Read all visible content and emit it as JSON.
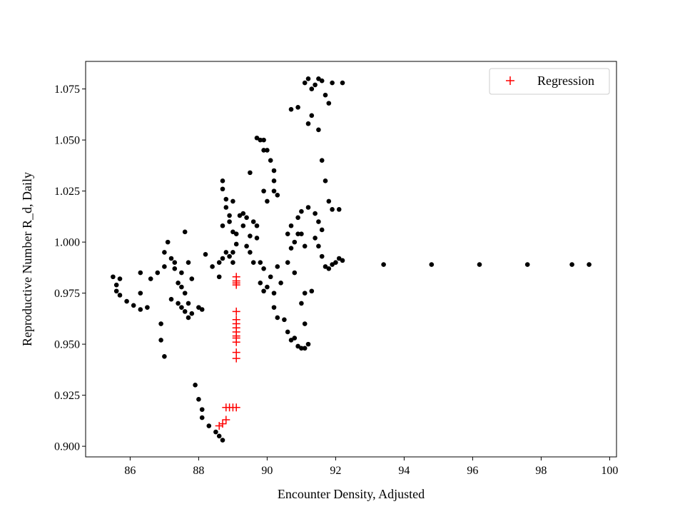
{
  "chart_data": {
    "type": "scatter",
    "title": "",
    "xlabel": "Encounter Density, Adjusted",
    "ylabel": "Reproductive Number R_d, Daily",
    "xlim": [
      84.7,
      100.2
    ],
    "ylim": [
      0.8948,
      1.0885
    ],
    "xticks": [
      86,
      88,
      90,
      92,
      94,
      96,
      98,
      100
    ],
    "yticks": [
      0.9,
      0.925,
      0.95,
      0.975,
      1.0,
      1.025,
      1.05,
      1.075
    ],
    "ytick_labels": [
      "0.900",
      "0.925",
      "0.950",
      "0.975",
      "1.000",
      "1.025",
      "1.050",
      "1.075"
    ],
    "grid": false,
    "legend": {
      "position": "top-right",
      "entries": [
        "Regression"
      ]
    },
    "series": [
      {
        "marker": "circle",
        "color": "#000000",
        "points": [
          [
            85.5,
            0.983
          ],
          [
            85.6,
            0.979
          ],
          [
            85.6,
            0.976
          ],
          [
            85.7,
            0.982
          ],
          [
            85.7,
            0.974
          ],
          [
            85.9,
            0.971
          ],
          [
            86.1,
            0.969
          ],
          [
            86.3,
            0.967
          ],
          [
            86.3,
            0.975
          ],
          [
            86.3,
            0.985
          ],
          [
            86.5,
            0.968
          ],
          [
            86.6,
            0.982
          ],
          [
            86.8,
            0.985
          ],
          [
            86.9,
            0.96
          ],
          [
            86.9,
            0.952
          ],
          [
            87.0,
            0.944
          ],
          [
            87.0,
            0.995
          ],
          [
            87.0,
            0.988
          ],
          [
            87.2,
            0.972
          ],
          [
            87.2,
            0.992
          ],
          [
            87.1,
            1.0
          ],
          [
            87.3,
            0.99
          ],
          [
            87.3,
            0.987
          ],
          [
            87.4,
            0.97
          ],
          [
            87.4,
            0.98
          ],
          [
            87.5,
            0.968
          ],
          [
            87.5,
            0.978
          ],
          [
            87.5,
            0.985
          ],
          [
            87.6,
            0.975
          ],
          [
            87.6,
            0.966
          ],
          [
            87.7,
            0.963
          ],
          [
            87.7,
            0.97
          ],
          [
            87.8,
            0.965
          ],
          [
            87.7,
            0.99
          ],
          [
            87.6,
            1.005
          ],
          [
            87.8,
            0.982
          ],
          [
            88.0,
            0.968
          ],
          [
            88.1,
            0.967
          ],
          [
            87.9,
            0.93
          ],
          [
            88.0,
            0.923
          ],
          [
            88.1,
            0.918
          ],
          [
            88.1,
            0.914
          ],
          [
            88.3,
            0.91
          ],
          [
            88.5,
            0.907
          ],
          [
            88.6,
            0.905
          ],
          [
            88.7,
            0.903
          ],
          [
            88.2,
            0.994
          ],
          [
            88.4,
            0.988
          ],
          [
            88.6,
            0.983
          ],
          [
            88.6,
            0.99
          ],
          [
            88.7,
            0.992
          ],
          [
            88.8,
            0.995
          ],
          [
            88.7,
            1.008
          ],
          [
            88.9,
            1.01
          ],
          [
            88.7,
            1.03
          ],
          [
            88.7,
            1.026
          ],
          [
            88.8,
            1.021
          ],
          [
            88.8,
            1.017
          ],
          [
            88.9,
            1.013
          ],
          [
            88.9,
            0.993
          ],
          [
            89.0,
            0.995
          ],
          [
            89.0,
            0.99
          ],
          [
            89.1,
            0.999
          ],
          [
            89.0,
            1.005
          ],
          [
            89.2,
            1.013
          ],
          [
            89.3,
            1.014
          ],
          [
            89.4,
            1.012
          ],
          [
            89.3,
            1.008
          ],
          [
            89.1,
            1.004
          ],
          [
            89.0,
            1.02
          ],
          [
            89.4,
            0.998
          ],
          [
            89.5,
            0.995
          ],
          [
            89.6,
            0.99
          ],
          [
            89.5,
            1.003
          ],
          [
            89.6,
            1.01
          ],
          [
            89.7,
            1.008
          ],
          [
            89.7,
            1.002
          ],
          [
            89.5,
            1.034
          ],
          [
            89.7,
            1.051
          ],
          [
            89.8,
            1.05
          ],
          [
            89.9,
            1.045
          ],
          [
            89.9,
            1.05
          ],
          [
            90.0,
            1.045
          ],
          [
            90.1,
            1.04
          ],
          [
            90.2,
            1.035
          ],
          [
            90.2,
            1.03
          ],
          [
            90.2,
            1.025
          ],
          [
            90.3,
            1.023
          ],
          [
            89.9,
            1.025
          ],
          [
            90.0,
            1.02
          ],
          [
            89.8,
            0.99
          ],
          [
            89.9,
            0.987
          ],
          [
            89.8,
            0.98
          ],
          [
            89.9,
            0.976
          ],
          [
            90.0,
            0.978
          ],
          [
            90.1,
            0.983
          ],
          [
            90.2,
            0.975
          ],
          [
            90.3,
            0.988
          ],
          [
            90.4,
            0.98
          ],
          [
            90.2,
            0.968
          ],
          [
            90.3,
            0.963
          ],
          [
            90.5,
            0.962
          ],
          [
            90.6,
            0.956
          ],
          [
            90.7,
            0.952
          ],
          [
            90.6,
            0.99
          ],
          [
            90.7,
            0.997
          ],
          [
            90.6,
            1.004
          ],
          [
            90.7,
            1.008
          ],
          [
            90.8,
            1.0
          ],
          [
            90.9,
            1.004
          ],
          [
            90.9,
            1.012
          ],
          [
            91.0,
            1.015
          ],
          [
            91.0,
            1.004
          ],
          [
            91.1,
            0.998
          ],
          [
            90.8,
            0.985
          ],
          [
            90.8,
            0.953
          ],
          [
            90.9,
            0.949
          ],
          [
            91.0,
            0.948
          ],
          [
            91.1,
            0.948
          ],
          [
            91.2,
            0.95
          ],
          [
            91.1,
            0.96
          ],
          [
            91.0,
            0.97
          ],
          [
            91.1,
            0.975
          ],
          [
            91.3,
            0.976
          ],
          [
            90.7,
            1.065
          ],
          [
            90.9,
            1.066
          ],
          [
            91.1,
            1.078
          ],
          [
            91.2,
            1.08
          ],
          [
            91.3,
            1.075
          ],
          [
            91.4,
            1.077
          ],
          [
            91.5,
            1.08
          ],
          [
            91.6,
            1.079
          ],
          [
            91.7,
            1.072
          ],
          [
            91.8,
            1.068
          ],
          [
            91.9,
            1.078
          ],
          [
            92.2,
            1.078
          ],
          [
            91.2,
            1.058
          ],
          [
            91.3,
            1.062
          ],
          [
            91.5,
            1.055
          ],
          [
            91.6,
            1.04
          ],
          [
            91.7,
            1.03
          ],
          [
            91.8,
            1.02
          ],
          [
            91.2,
            1.017
          ],
          [
            91.4,
            1.014
          ],
          [
            91.5,
            1.01
          ],
          [
            91.6,
            1.006
          ],
          [
            91.4,
            1.002
          ],
          [
            91.5,
            0.998
          ],
          [
            91.6,
            0.993
          ],
          [
            91.7,
            0.988
          ],
          [
            91.8,
            0.987
          ],
          [
            91.9,
            0.989
          ],
          [
            92.0,
            0.99
          ],
          [
            92.1,
            0.992
          ],
          [
            92.2,
            0.991
          ],
          [
            91.9,
            1.016
          ],
          [
            92.1,
            1.016
          ],
          [
            93.4,
            0.989
          ],
          [
            94.8,
            0.989
          ],
          [
            96.2,
            0.989
          ],
          [
            97.6,
            0.989
          ],
          [
            98.9,
            0.989
          ],
          [
            99.4,
            0.989
          ]
        ]
      },
      {
        "name": "Regression",
        "marker": "plus",
        "color": "#ff0000",
        "points": [
          [
            88.6,
            0.91
          ],
          [
            88.7,
            0.911
          ],
          [
            88.8,
            0.913
          ],
          [
            88.8,
            0.919
          ],
          [
            88.9,
            0.919
          ],
          [
            89.0,
            0.919
          ],
          [
            89.1,
            0.919
          ],
          [
            89.1,
            0.943
          ],
          [
            89.1,
            0.946
          ],
          [
            89.1,
            0.951
          ],
          [
            89.1,
            0.953
          ],
          [
            89.1,
            0.954
          ],
          [
            89.1,
            0.956
          ],
          [
            89.1,
            0.958
          ],
          [
            89.1,
            0.96
          ],
          [
            89.1,
            0.962
          ],
          [
            89.1,
            0.966
          ],
          [
            89.1,
            0.979
          ],
          [
            89.1,
            0.98
          ],
          [
            89.1,
            0.981
          ],
          [
            89.1,
            0.983
          ]
        ]
      }
    ]
  }
}
